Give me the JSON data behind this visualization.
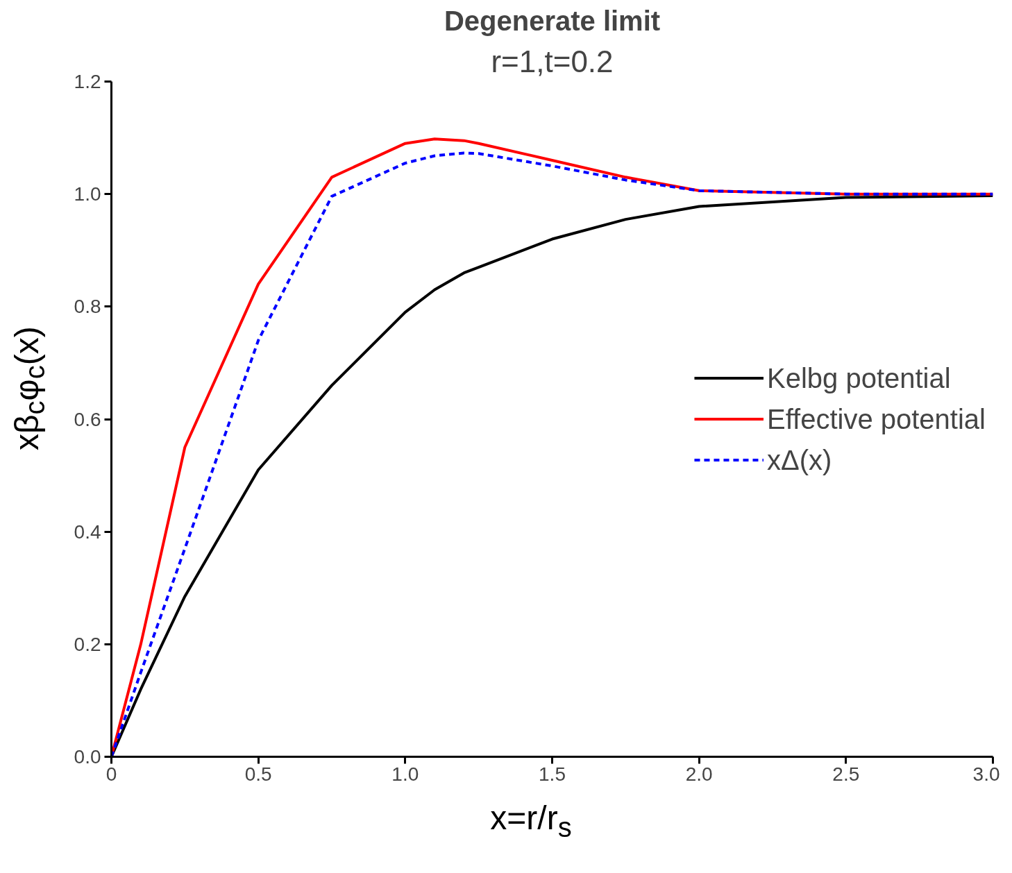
{
  "chart_data": {
    "type": "line",
    "title": "Degenerate limit",
    "subtitle": "r=1,t=0.2",
    "xlabel": "x=r/r$_{s}$",
    "ylabel": "xβ$_{c}$φ$_{c}$(x)",
    "x": [
      0,
      0.1,
      0.25,
      0.5,
      0.75,
      1.0,
      1.1,
      1.2,
      1.25,
      1.5,
      1.75,
      2.0,
      2.5,
      3.0
    ],
    "series": [
      {
        "name": "Kelbg potential",
        "color": "#000000",
        "line_style": "solid",
        "values": [
          0,
          0.12,
          0.285,
          0.51,
          0.66,
          0.79,
          0.83,
          0.86,
          0.87,
          0.92,
          0.955,
          0.978,
          0.994,
          0.997
        ]
      },
      {
        "name": "Effective potential",
        "color": "#ff0000",
        "line_style": "solid",
        "values": [
          0,
          0.2,
          0.55,
          0.84,
          1.03,
          1.09,
          1.098,
          1.095,
          1.09,
          1.06,
          1.03,
          1.006,
          1.0,
          1.0
        ]
      },
      {
        "name": "xΔ(x)",
        "color": "#0000ff",
        "line_style": "dashed",
        "values": [
          0,
          0.15,
          0.37,
          0.74,
          0.996,
          1.055,
          1.068,
          1.073,
          1.072,
          1.05,
          1.025,
          1.006,
          1.0,
          1.0
        ]
      }
    ],
    "xlim": [
      0,
      3.0
    ],
    "xticks": [
      0,
      {
        "value": 0.5,
        "label": "0.5"
      },
      {
        "value": 1.0,
        "label": "1.0"
      },
      {
        "value": 1.5,
        "label": "1.5"
      },
      {
        "value": 2.0,
        "label": "2.0"
      },
      {
        "value": 2.5,
        "label": "2.5"
      },
      {
        "value": 3.0,
        "label": "3.0"
      }
    ],
    "ylim": [
      0,
      1.2
    ],
    "yticks": [
      {
        "value": 0,
        "label": "0.0"
      },
      {
        "value": 0.2,
        "label": "0.2"
      },
      {
        "value": 0.4,
        "label": "0.4"
      },
      {
        "value": 0.6,
        "label": "0.6"
      },
      {
        "value": 0.8,
        "label": "0.8"
      },
      {
        "value": 1.0,
        "label": "1.0"
      },
      {
        "value": 1.2,
        "label": "1.2"
      }
    ],
    "grid": false,
    "legend": "right",
    "marker": "none"
  }
}
